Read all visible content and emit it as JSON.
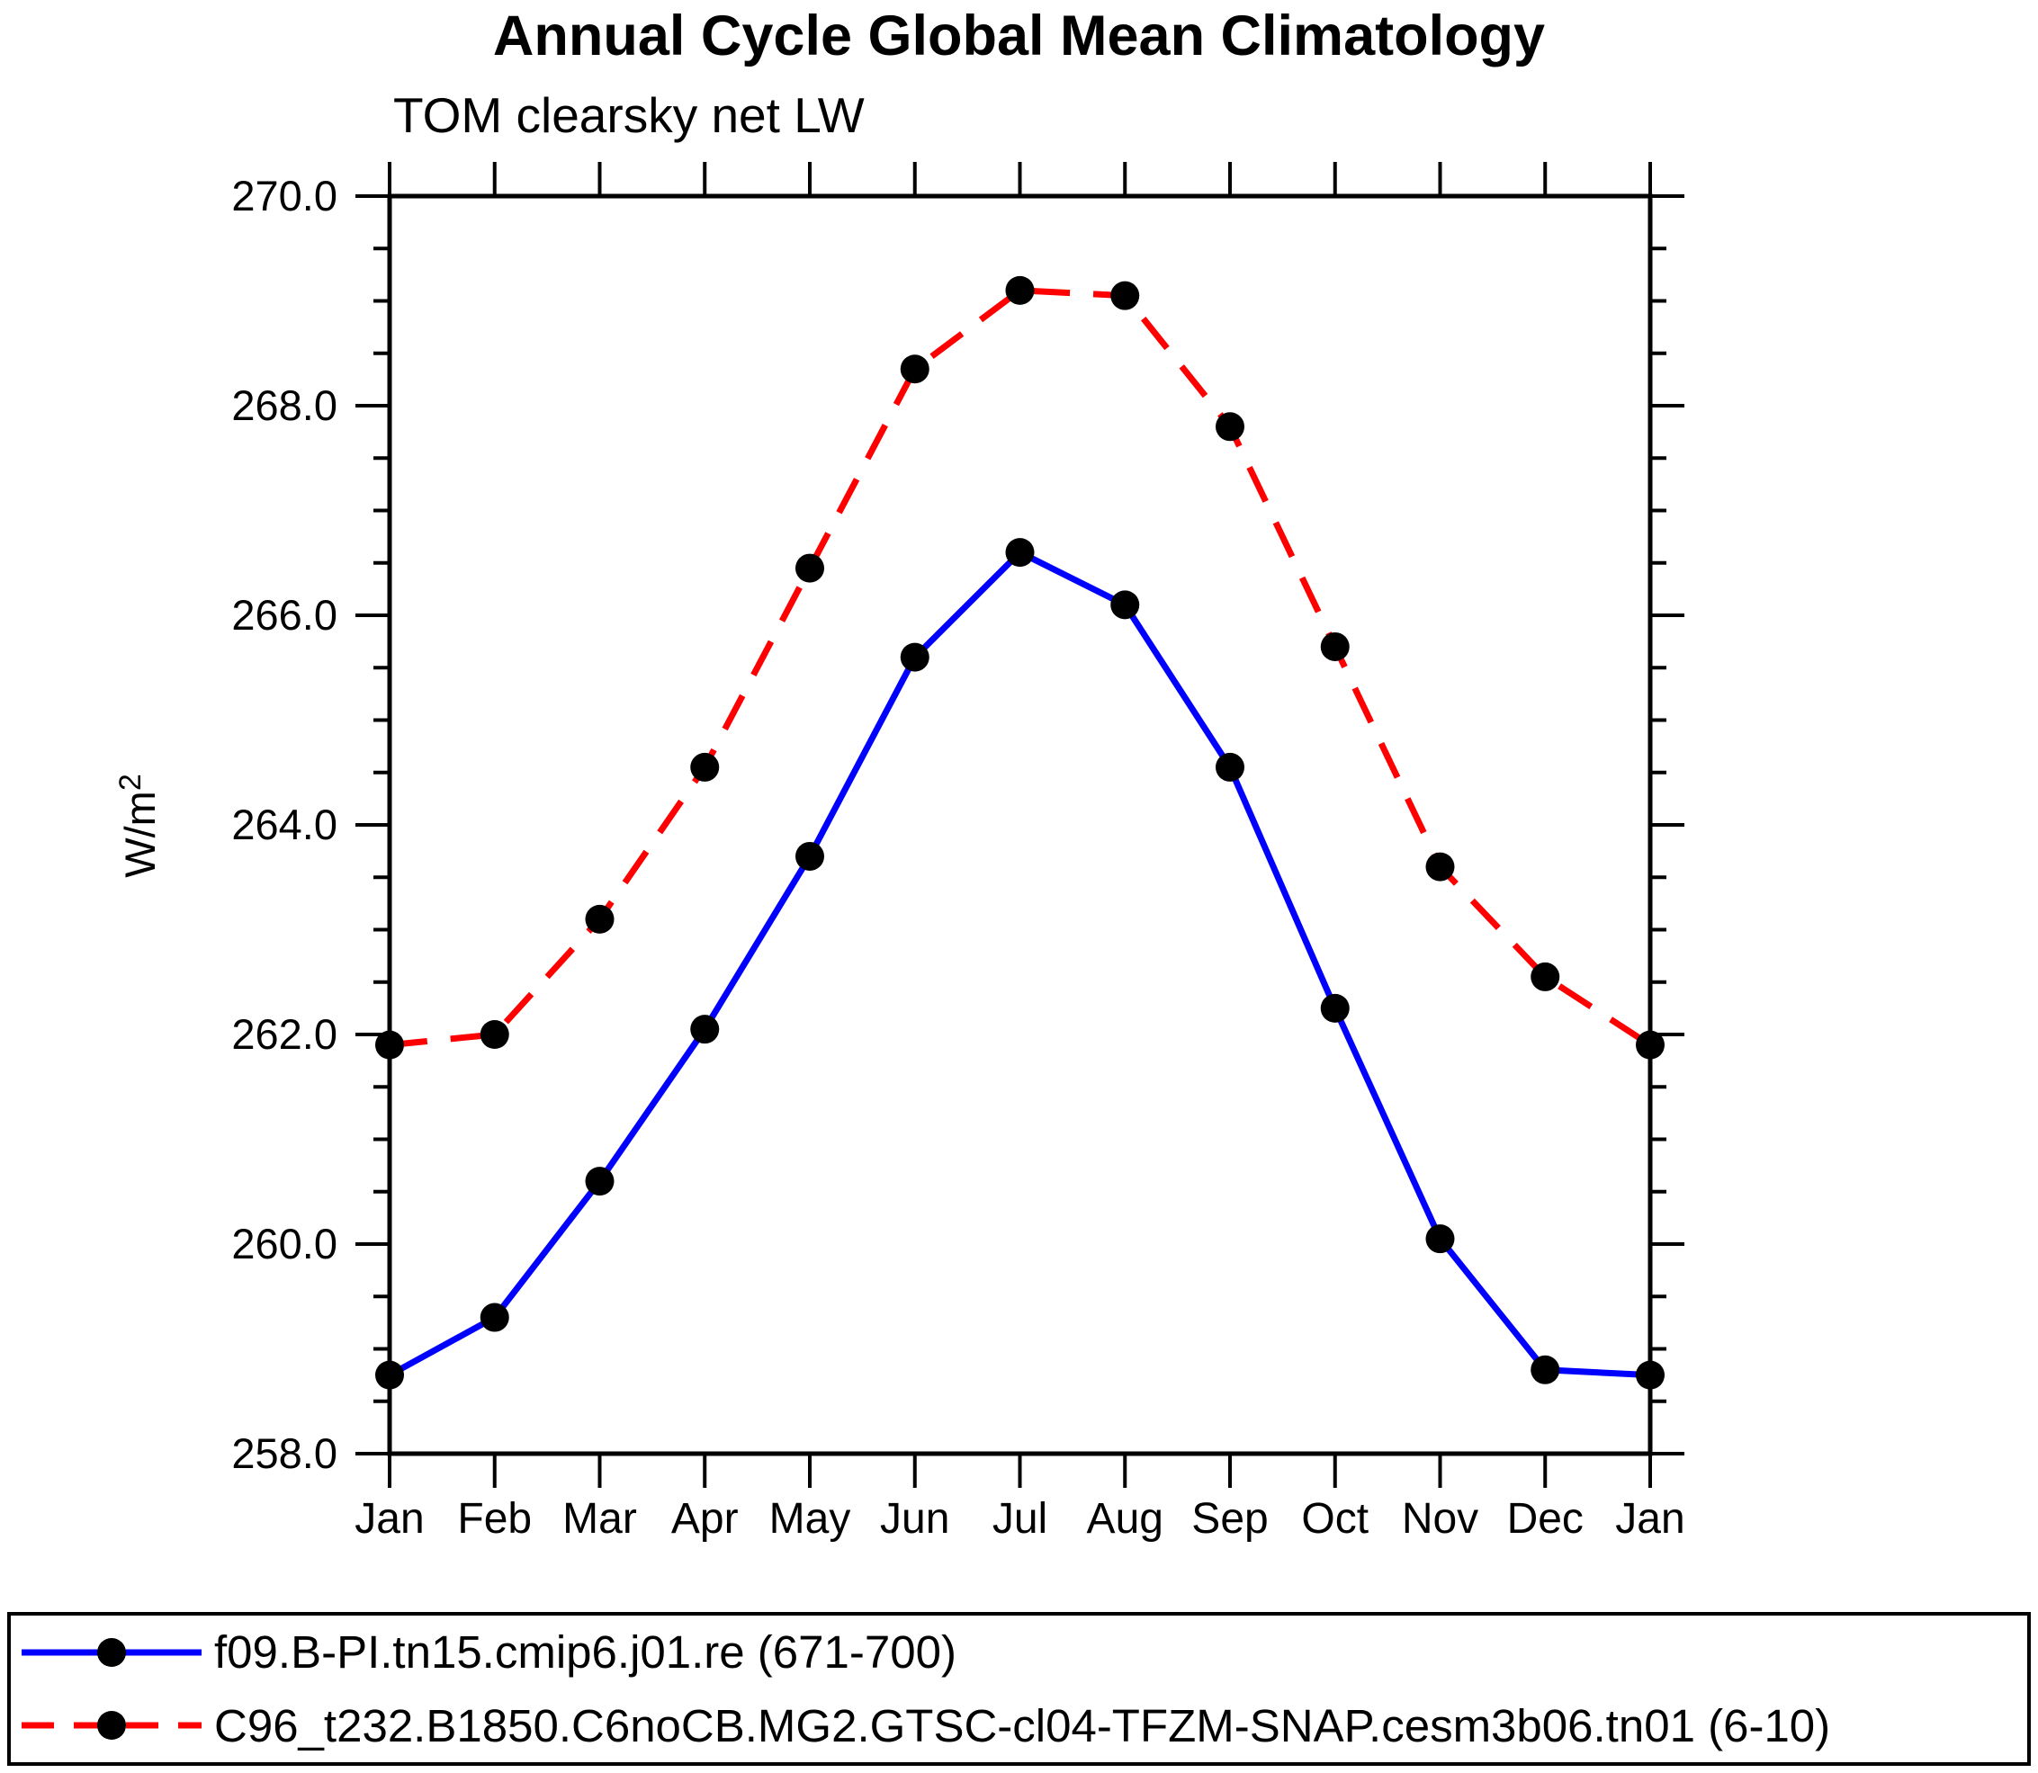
{
  "title": "Annual Cycle Global Mean Climatology",
  "subtitle": "TOM clearsky net LW",
  "ylabel": {
    "base": "W/m",
    "sup": "2",
    "text": "W/m^2"
  },
  "legend": {
    "entries": [
      {
        "label": "f09.B-PI.tn15.cmip6.j01.re (671-700)",
        "color": "#0000ff",
        "style": "solid",
        "marker": "black-circle"
      },
      {
        "label": "C96_t232.B1850.C6noCB.MG2.GTSC-cl04-TFZM-SNAP.cesm3b06.tn01 (6-10)",
        "color": "#ff0000",
        "style": "dashed",
        "marker": "black-circle"
      }
    ]
  },
  "chart_data": {
    "type": "line",
    "title": "Annual Cycle Global Mean Climatology",
    "subtitle": "TOM clearsky net LW",
    "xlabel": "",
    "ylabel": "W/m^2",
    "categories": [
      "Jan",
      "Feb",
      "Mar",
      "Apr",
      "May",
      "Jun",
      "Jul",
      "Aug",
      "Sep",
      "Oct",
      "Nov",
      "Dec",
      "Jan"
    ],
    "series": [
      {
        "name": "f09.B-PI.tn15.cmip6.j01.re (671-700)",
        "color": "#0000ff",
        "style": "solid",
        "values": [
          258.75,
          259.3,
          260.6,
          262.05,
          263.7,
          265.6,
          266.6,
          266.1,
          264.55,
          262.25,
          260.05,
          258.8,
          258.75
        ]
      },
      {
        "name": "C96_t232.B1850.C6noCB.MG2.GTSC-cl04-TFZM-SNAP.cesm3b06.tn01 (6-10)",
        "color": "#ff0000",
        "style": "dashed",
        "values": [
          261.9,
          262.0,
          263.1,
          264.55,
          266.45,
          268.35,
          269.1,
          269.05,
          267.8,
          265.7,
          263.6,
          262.55,
          261.9
        ]
      }
    ],
    "ylim": [
      258.0,
      270.0
    ],
    "ytick_major_interval": 2.0,
    "ytick_minor_interval": 0.5,
    "ytick_labels": [
      "258.0",
      "260.0",
      "262.0",
      "264.0",
      "266.0",
      "268.0",
      "270.0"
    ],
    "grid": false,
    "marker": {
      "shape": "circle",
      "color": "#000000"
    },
    "legend_position": "bottom",
    "frame_color": "#000000",
    "background": "#ffffff"
  }
}
